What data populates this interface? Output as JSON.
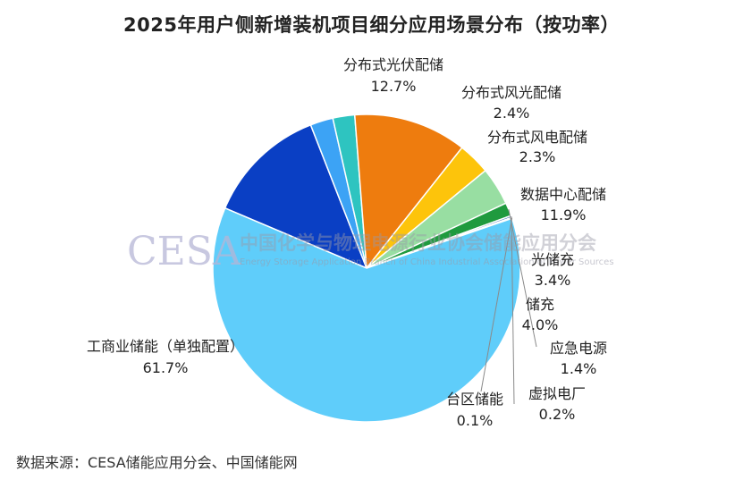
{
  "title": "2025年用户侧新增装机项目细分应用场景分布（按功率）",
  "source": "数据来源：CESA储能应用分会、中国储能网",
  "watermark": {
    "logo": "CESA",
    "cn": "中国化学与物理电源行业协会储能应用分会",
    "en": "Energy Storage Application Branch of China Industrial Association of Power Sources"
  },
  "chart_data": {
    "type": "pie",
    "title": "2025年用户侧新增装机项目细分应用场景分布（按功率）",
    "unit": "%",
    "slices": [
      {
        "name": "分布式光伏配储",
        "value": 12.7,
        "label": "12.7%",
        "color": "#0a3fc4"
      },
      {
        "name": "分布式风光配储",
        "value": 2.4,
        "label": "2.4%",
        "color": "#3ca3f5"
      },
      {
        "name": "分布式风电配储",
        "value": 2.3,
        "label": "2.3%",
        "color": "#2ec4c0"
      },
      {
        "name": "数据中心配储",
        "value": 11.9,
        "label": "11.9%",
        "color": "#ee7c0e"
      },
      {
        "name": "光储充",
        "value": 3.4,
        "label": "3.4%",
        "color": "#fdc40b"
      },
      {
        "name": "储充",
        "value": 4.0,
        "label": "4.0%",
        "color": "#98dea2"
      },
      {
        "name": "应急电源",
        "value": 1.4,
        "label": "1.4%",
        "color": "#1f9a3e"
      },
      {
        "name": "虚拟电厂",
        "value": 0.2,
        "label": "0.2%",
        "color": "#1d57a8"
      },
      {
        "name": "台区储能",
        "value": 0.1,
        "label": "0.1%",
        "color": "#a6bde0"
      },
      {
        "name": "工商业储能（单独配置）",
        "value": 61.7,
        "label": "61.7%",
        "color": "#5fcdfa"
      }
    ]
  }
}
